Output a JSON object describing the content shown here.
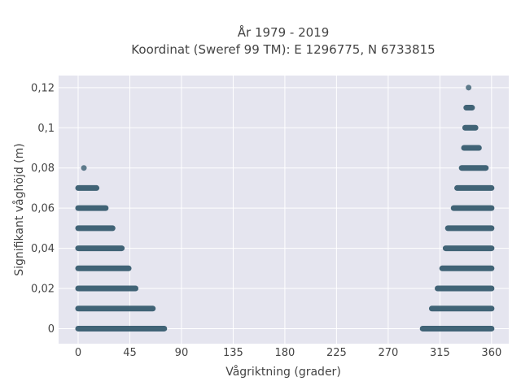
{
  "chart_data": {
    "type": "scatter",
    "title_line1": "År 1979 - 2019",
    "title_line2": "Koordinat (Sweref 99 TM): E 1296775, N 6733815",
    "xlabel": "Vågriktning (grader)",
    "ylabel": "Signifikant våghöjd (m)",
    "xlim": [
      -17,
      375
    ],
    "ylim": [
      -0.0075,
      0.126
    ],
    "x_ticks": [
      0,
      45,
      90,
      135,
      180,
      225,
      270,
      315,
      360
    ],
    "x_tick_labels": [
      "0",
      "45",
      "90",
      "135",
      "180",
      "225",
      "270",
      "315",
      "360"
    ],
    "y_ticks": [
      0,
      0.02,
      0.04,
      0.06,
      0.08,
      0.1,
      0.12
    ],
    "y_tick_labels": [
      "0",
      "0,02",
      "0,04",
      "0,06",
      "0,08",
      "0,1",
      "0,12"
    ],
    "grid": true,
    "colors": {
      "points": "#2e5468",
      "plot_bg": "#e5e5ef",
      "grid": "#ffffff"
    },
    "rows": [
      {
        "y": 0,
        "left": [
          0,
          75
        ],
        "right": [
          300,
          360
        ]
      },
      {
        "y": 0.01,
        "left": [
          0,
          65
        ],
        "right": [
          308,
          360
        ]
      },
      {
        "y": 0.02,
        "left": [
          0,
          50
        ],
        "right": [
          313,
          360
        ]
      },
      {
        "y": 0.03,
        "left": [
          0,
          44
        ],
        "right": [
          317,
          360
        ]
      },
      {
        "y": 0.04,
        "left": [
          0,
          38
        ],
        "right": [
          320,
          360
        ]
      },
      {
        "y": 0.05,
        "left": [
          0,
          30
        ],
        "right": [
          322,
          360
        ]
      },
      {
        "y": 0.06,
        "left": [
          0,
          24
        ],
        "right": [
          327,
          360
        ]
      },
      {
        "y": 0.07,
        "left": [
          0,
          16
        ],
        "right": [
          330,
          360
        ]
      },
      {
        "y": 0.08,
        "left": [
          5,
          5
        ],
        "right": [
          334,
          355
        ]
      },
      {
        "y": 0.09,
        "left": null,
        "right": [
          336,
          349
        ]
      },
      {
        "y": 0.1,
        "left": null,
        "right": [
          337,
          346
        ]
      },
      {
        "y": 0.11,
        "left": null,
        "right": [
          338,
          343
        ]
      },
      {
        "y": 0.12,
        "left": null,
        "right": [
          340,
          340
        ]
      }
    ]
  }
}
